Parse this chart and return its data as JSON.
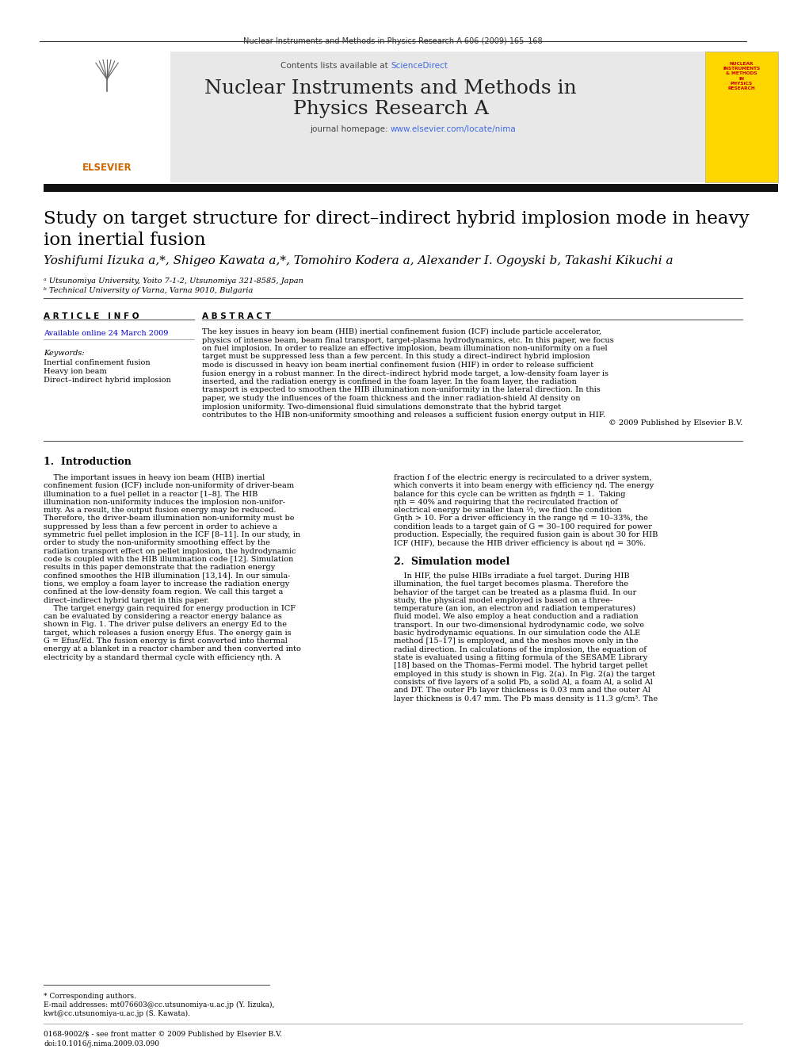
{
  "page_bg": "#ffffff",
  "journal_header_text": "Nuclear Instruments and Methods in Physics Research A 606 (2009) 165–168",
  "journal_name_line1": "Nuclear Instruments and Methods in",
  "journal_name_line2": "Physics Research A",
  "sciencedirect_color": "#4169e1",
  "homepage_color": "#4169e1",
  "header_bg": "#e8e8e8",
  "yellow_box_bg": "#ffd700",
  "yellow_box_text": "NUCLEAR\nINSTRUMENTS\n& METHODS\nIN\nPHYSICS\nRESEARCH",
  "title": "Study on target structure for direct–indirect hybrid implosion mode in heavy\nion inertial fusion",
  "authors": "Yoshifumi Iizuka a,*, Shigeo Kawata a,*, Tomohiro Kodera a, Alexander I. Ogoyski b, Takashi Kikuchi a",
  "affil_a": "ᵃ Utsunomiya University, Yoito 7-1-2, Utsunomiya 321-8585, Japan",
  "affil_b": "ᵇ Technical University of Varna, Varna 9010, Bulgaria",
  "article_info_header": "A R T I C L E   I N F O",
  "abstract_header": "A B S T R A C T",
  "available_online": "Available online 24 March 2009",
  "keywords_header": "Keywords:",
  "keywords": [
    "Inertial confinement fusion",
    "Heavy ion beam",
    "Direct–indirect hybrid implosion"
  ],
  "abstract_lines": [
    "The key issues in heavy ion beam (HIB) inertial confinement fusion (ICF) include particle accelerator,",
    "physics of intense beam, beam final transport, target-plasma hydrodynamics, etc. In this paper, we focus",
    "on fuel implosion. In order to realize an effective implosion, beam illumination non-uniformity on a fuel",
    "target must be suppressed less than a few percent. In this study a direct–indirect hybrid implosion",
    "mode is discussed in heavy ion beam inertial confinement fusion (HIF) in order to release sufficient",
    "fusion energy in a robust manner. In the direct–indirect hybrid mode target, a low-density foam layer is",
    "inserted, and the radiation energy is confined in the foam layer. In the foam layer, the radiation",
    "transport is expected to smoothen the HIB illumination non-uniformity in the lateral direction. In this",
    "paper, we study the influences of the foam thickness and the inner radiation-shield Al density on",
    "implosion uniformity. Two-dimensional fluid simulations demonstrate that the hybrid target",
    "contributes to the HIB non-uniformity smoothing and releases a sufficient fusion energy output in HIF.",
    "© 2009 Published by Elsevier B.V."
  ],
  "section1_header": "1.  Introduction",
  "left_intro": [
    "    The important issues in heavy ion beam (HIB) inertial",
    "confinement fusion (ICF) include non-uniformity of driver-beam",
    "illumination to a fuel pellet in a reactor [1–8]. The HIB",
    "illumination non-uniformity induces the implosion non-unifor-",
    "mity. As a result, the output fusion energy may be reduced.",
    "Therefore, the driver-beam illumination non-uniformity must be",
    "suppressed by less than a few percent in order to achieve a",
    "symmetric fuel pellet implosion in the ICF [8–11]. In our study, in",
    "order to study the non-uniformity smoothing effect by the",
    "radiation transport effect on pellet implosion, the hydrodynamic",
    "code is coupled with the HIB illumination code [12]. Simulation",
    "results in this paper demonstrate that the radiation energy",
    "confined smoothes the HIB illumination [13,14]. In our simula-",
    "tions, we employ a foam layer to increase the radiation energy",
    "confined at the low-density foam region. We call this target a",
    "direct–indirect hybrid target in this paper.",
    "    The target energy gain required for energy production in ICF",
    "can be evaluated by considering a reactor energy balance as",
    "shown in Fig. 1. The driver pulse delivers an energy Ed to the",
    "target, which releases a fusion energy Efus. The energy gain is",
    "G = Efus/Ed. The fusion energy is first converted into thermal",
    "energy at a blanket in a reactor chamber and then converted into",
    "electricity by a standard thermal cycle with efficiency ηth. A"
  ],
  "right_intro": [
    "fraction f of the electric energy is recirculated to a driver system,",
    "which converts it into beam energy with efficiency ηd. The energy",
    "balance for this cycle can be written as fηdηth = 1.  Taking",
    "ηth = 40% and requiring that the recirculated fraction of",
    "electrical energy be smaller than ½, we find the condition",
    "Gηth > 10. For a driver efficiency in the range ηd = 10–33%, the",
    "condition leads to a target gain of G = 30–100 required for power",
    "production. Especially, the required fusion gain is about 30 for HIB",
    "ICF (HIF), because the HIB driver efficiency is about ηd = 30%."
  ],
  "section2_header": "2.  Simulation model",
  "sec2_lines": [
    "    In HIF, the pulse HIBs irradiate a fuel target. During HIB",
    "illumination, the fuel target becomes plasma. Therefore the",
    "behavior of the target can be treated as a plasma fluid. In our",
    "study, the physical model employed is based on a three-",
    "temperature (an ion, an electron and radiation temperatures)",
    "fluid model. We also employ a heat conduction and a radiation",
    "transport. In our two-dimensional hydrodynamic code, we solve",
    "basic hydrodynamic equations. In our simulation code the ALE",
    "method [15–17] is employed, and the meshes move only in the",
    "radial direction. In calculations of the implosion, the equation of",
    "state is evaluated using a fitting formula of the SESAME Library",
    "[18] based on the Thomas–Fermi model. The hybrid target pellet",
    "employed in this study is shown in Fig. 2(a). In Fig. 2(a) the target",
    "consists of five layers of a solid Pb, a solid Al, a foam Al, a solid Al",
    "and DT. The outer Pb layer thickness is 0.03 mm and the outer Al",
    "layer thickness is 0.47 mm. The Pb mass density is 11.3 g/cm³. The"
  ],
  "footnote1": "* Corresponding authors.",
  "footnote2": "E-mail addresses: mt076603@cc.utsunomiya-u.ac.jp (Y. Iizuka),",
  "footnote3": "kwt@cc.utsunomiya-u.ac.jp (S. Kawata).",
  "footer_left1": "0168-9002/$ - see front matter © 2009 Published by Elsevier B.V.",
  "footer_left2": "doi:10.1016/j.nima.2009.03.090",
  "blue_link": "#0000cd"
}
